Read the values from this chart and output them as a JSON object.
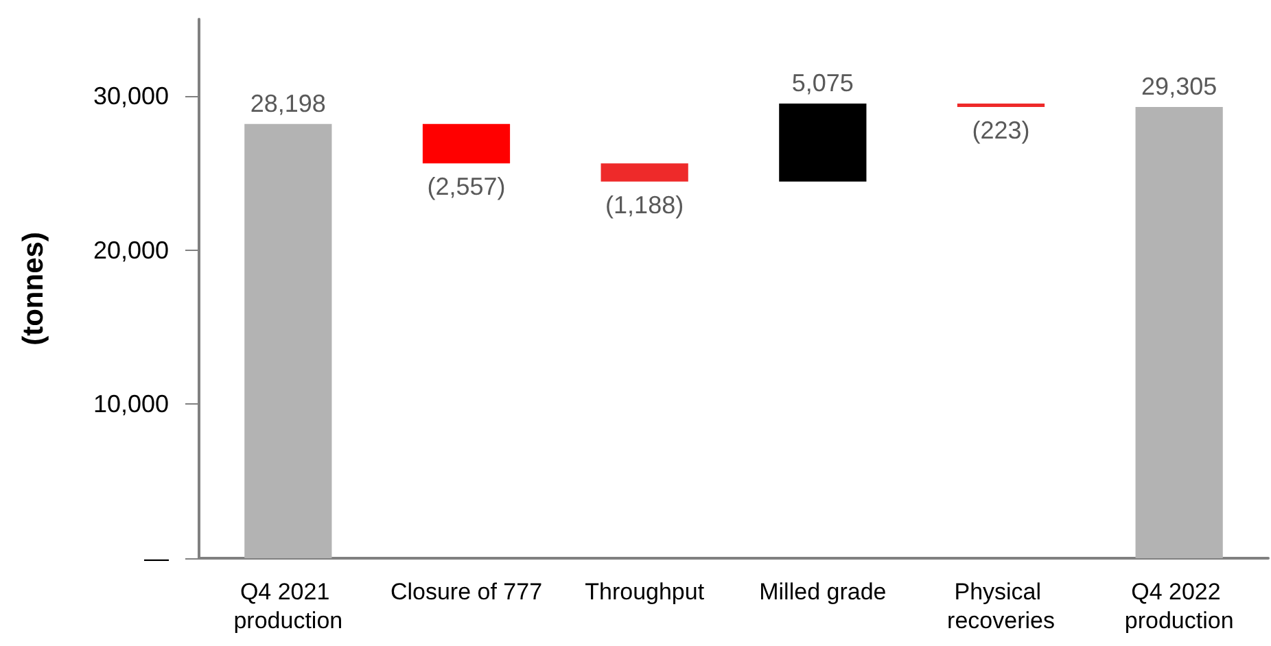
{
  "chart_data": {
    "type": "bar",
    "ylabel": "(tonnes)",
    "categories": [
      "Q4 2021 production",
      "Closure of 777",
      "Throughput",
      "Milled grade",
      "Physical recoveries",
      "Q4 2022 production"
    ],
    "values": [
      28198,
      -2557,
      -1188,
      5075,
      -223,
      29305
    ],
    "base": [
      0,
      28198,
      25641,
      24453,
      29528,
      0
    ],
    "colors": [
      "#b3b3b3",
      "#ff0000",
      "#ee2a2a",
      "#000000",
      "#ee2a2a",
      "#b3b3b3"
    ],
    "value_labels": [
      "28,198",
      "(2,557)",
      "(1,188)",
      "5,075",
      "(223)",
      "29,305"
    ],
    "ylim": [
      0,
      35000
    ],
    "yticks": [
      {
        "value": 0,
        "label": "—"
      },
      {
        "value": 10000,
        "label": "10,000"
      },
      {
        "value": 20000,
        "label": "20,000"
      },
      {
        "value": 30000,
        "label": "30,000"
      }
    ]
  }
}
